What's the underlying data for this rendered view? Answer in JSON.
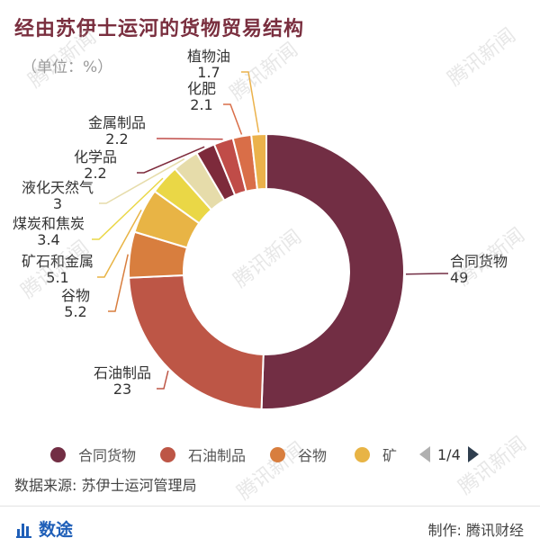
{
  "title": "经由苏伊士运河的货物贸易结构",
  "unit": "（单位：%）",
  "watermark": "腾讯新闻",
  "chart_data": {
    "type": "pie",
    "donut": true,
    "labels": [
      "合同货物",
      "石油制品",
      "谷物",
      "矿石和金属",
      "煤炭和焦炭",
      "液化天然气",
      "化学品",
      "金属制品",
      "化肥",
      "植物油"
    ],
    "values": [
      49,
      23,
      5.2,
      5.1,
      3.4,
      3,
      2.2,
      2.2,
      2.1,
      1.7
    ],
    "value_labels": [
      "49",
      "23",
      "5.2",
      "5.1",
      "3.4",
      "3",
      "2.2",
      "2.2",
      "2.1",
      "1.7"
    ],
    "colors": [
      "#722e44",
      "#bd5646",
      "#d87e3e",
      "#e8b445",
      "#ead746",
      "#e6dcaa",
      "#7d2a3b",
      "#c04c48",
      "#d96e48",
      "#ebb24b"
    ],
    "legend_position": "bottom"
  },
  "legend": {
    "items": [
      "合同货物",
      "石油制品",
      "谷物",
      "矿"
    ],
    "colors": [
      "#722e44",
      "#bd5646",
      "#d87e3e",
      "#e8b445"
    ],
    "page": "1/4"
  },
  "source": "数据来源: 苏伊士运河管理局",
  "footer": {
    "brand": "数途",
    "credit": "制作: 腾讯财经"
  },
  "icons": [
    "bar-chart-icon",
    "page-prev-icon",
    "page-next-icon"
  ]
}
